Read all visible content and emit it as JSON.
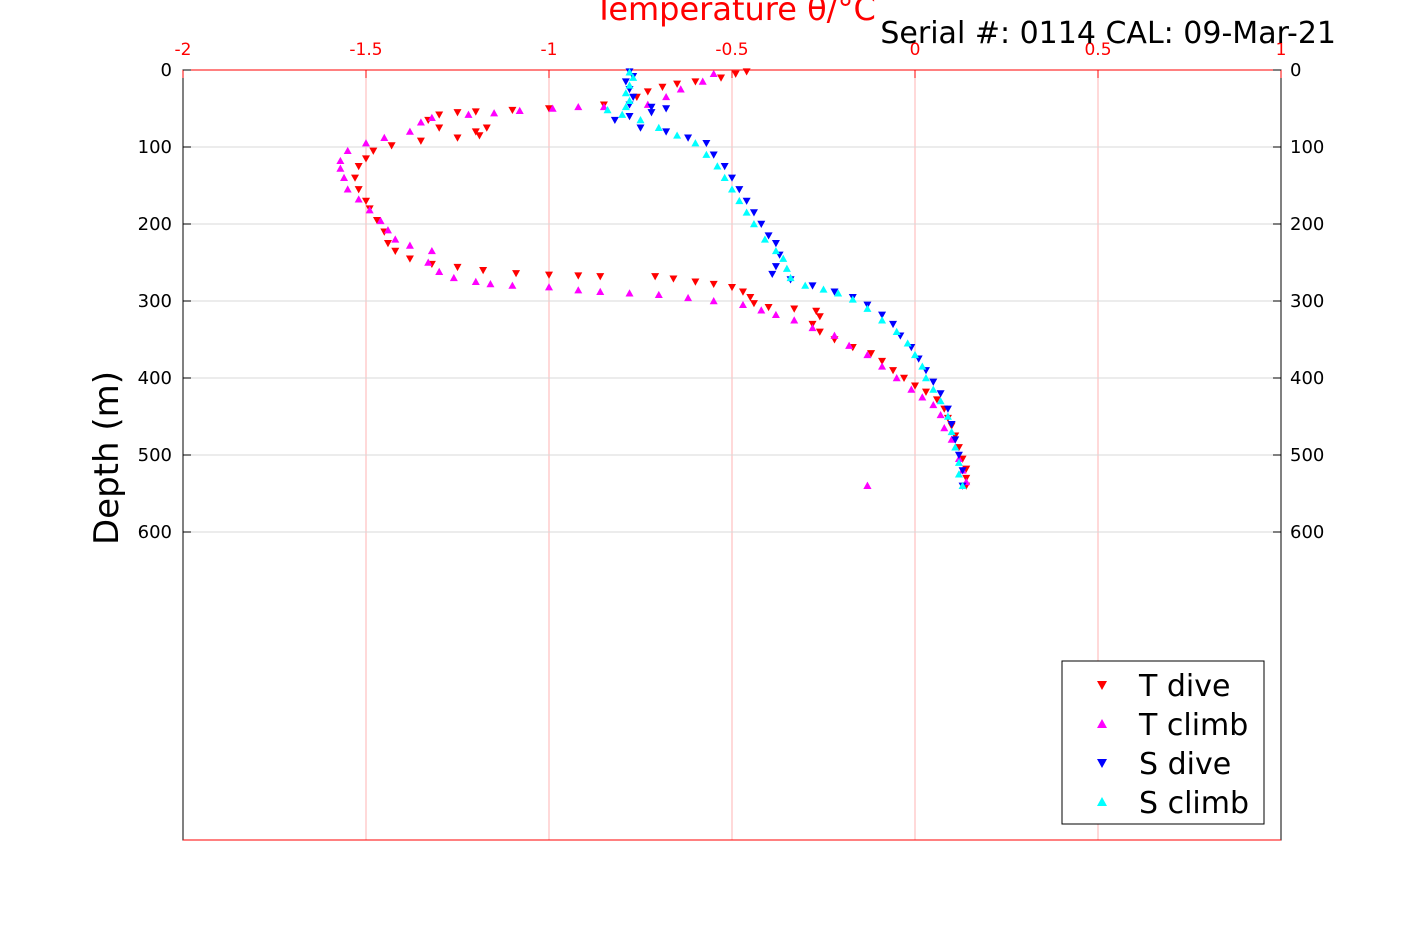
{
  "header": {
    "serial_text": "Serial #: 0114  CAL: 09-Mar-21"
  },
  "colors": {
    "axis_top": "#ff0000",
    "grid_vertical": "#ffb3b3",
    "grid_horizontal": "#d9d9d9",
    "t_dive": "#ff0000",
    "t_climb": "#ff00ff",
    "s_dive": "#0000ff",
    "s_climb": "#00ffff"
  },
  "chart_data": {
    "type": "scatter",
    "title": "",
    "xlabel": "Temperature θ/°C",
    "ylabel": "Depth (m)",
    "xlim": [
      -2,
      1
    ],
    "ylim": [
      0,
      1000
    ],
    "y_reversed": true,
    "x_axis_position": "top",
    "x_ticks": [
      -2,
      -1.5,
      -1,
      -0.5,
      0,
      0.5,
      1
    ],
    "x_tick_labels": [
      "-2",
      "-1.5",
      "-1",
      "-0.5",
      "0",
      "0.5",
      "1"
    ],
    "y_ticks": [
      0,
      100,
      200,
      300,
      400,
      500,
      600
    ],
    "y_tick_labels": [
      "0",
      "100",
      "200",
      "300",
      "400",
      "500",
      "600"
    ],
    "grid": true,
    "legend_position": "bottom-right",
    "series": [
      {
        "name": "T dive",
        "marker": "triangle-down",
        "color": "#ff0000",
        "points": [
          [
            -0.46,
            2
          ],
          [
            -0.49,
            5
          ],
          [
            -0.53,
            10
          ],
          [
            -0.6,
            15
          ],
          [
            -0.65,
            18
          ],
          [
            -0.69,
            22
          ],
          [
            -0.73,
            28
          ],
          [
            -0.76,
            35
          ],
          [
            -0.85,
            45
          ],
          [
            -1.0,
            50
          ],
          [
            -1.1,
            52
          ],
          [
            -1.2,
            54
          ],
          [
            -1.25,
            55
          ],
          [
            -1.3,
            58
          ],
          [
            -1.33,
            65
          ],
          [
            -1.3,
            75
          ],
          [
            -1.2,
            80
          ],
          [
            -1.17,
            75
          ],
          [
            -1.19,
            85
          ],
          [
            -1.25,
            88
          ],
          [
            -1.35,
            92
          ],
          [
            -1.43,
            98
          ],
          [
            -1.48,
            105
          ],
          [
            -1.5,
            115
          ],
          [
            -1.52,
            125
          ],
          [
            -1.53,
            140
          ],
          [
            -1.52,
            155
          ],
          [
            -1.5,
            170
          ],
          [
            -1.49,
            180
          ],
          [
            -1.47,
            195
          ],
          [
            -1.45,
            210
          ],
          [
            -1.44,
            225
          ],
          [
            -1.42,
            235
          ],
          [
            -1.38,
            245
          ],
          [
            -1.32,
            252
          ],
          [
            -1.25,
            256
          ],
          [
            -1.18,
            260
          ],
          [
            -1.09,
            264
          ],
          [
            -1.0,
            266
          ],
          [
            -0.92,
            267
          ],
          [
            -0.86,
            268
          ],
          [
            -0.71,
            268
          ],
          [
            -0.66,
            271
          ],
          [
            -0.6,
            275
          ],
          [
            -0.55,
            278
          ],
          [
            -0.5,
            282
          ],
          [
            -0.47,
            288
          ],
          [
            -0.45,
            295
          ],
          [
            -0.44,
            303
          ],
          [
            -0.4,
            308
          ],
          [
            -0.33,
            310
          ],
          [
            -0.27,
            313
          ],
          [
            -0.26,
            320
          ],
          [
            -0.28,
            330
          ],
          [
            -0.26,
            340
          ],
          [
            -0.22,
            350
          ],
          [
            -0.17,
            360
          ],
          [
            -0.12,
            368
          ],
          [
            -0.09,
            378
          ],
          [
            -0.06,
            390
          ],
          [
            -0.03,
            400
          ],
          [
            0.0,
            410
          ],
          [
            0.03,
            418
          ],
          [
            0.06,
            428
          ],
          [
            0.08,
            440
          ],
          [
            0.09,
            452
          ],
          [
            0.1,
            462
          ],
          [
            0.11,
            475
          ],
          [
            0.12,
            490
          ],
          [
            0.13,
            505
          ],
          [
            0.14,
            518
          ],
          [
            0.14,
            530
          ],
          [
            0.14,
            540
          ]
        ]
      },
      {
        "name": "T climb",
        "marker": "triangle-up",
        "color": "#ff00ff",
        "points": [
          [
            -0.13,
            540
          ],
          [
            -0.13,
            540
          ],
          [
            0.14,
            535
          ],
          [
            0.13,
            520
          ],
          [
            0.12,
            505
          ],
          [
            0.1,
            480
          ],
          [
            0.08,
            465
          ],
          [
            0.07,
            448
          ],
          [
            0.05,
            435
          ],
          [
            0.02,
            425
          ],
          [
            -0.01,
            415
          ],
          [
            -0.05,
            400
          ],
          [
            -0.09,
            385
          ],
          [
            -0.13,
            370
          ],
          [
            -0.18,
            358
          ],
          [
            -0.22,
            345
          ],
          [
            -0.28,
            335
          ],
          [
            -0.33,
            325
          ],
          [
            -0.38,
            318
          ],
          [
            -0.42,
            312
          ],
          [
            -0.47,
            305
          ],
          [
            -0.55,
            300
          ],
          [
            -0.62,
            296
          ],
          [
            -0.7,
            292
          ],
          [
            -0.78,
            290
          ],
          [
            -0.86,
            288
          ],
          [
            -0.92,
            286
          ],
          [
            -1.0,
            282
          ],
          [
            -1.1,
            280
          ],
          [
            -1.16,
            278
          ],
          [
            -1.2,
            275
          ],
          [
            -1.26,
            270
          ],
          [
            -1.3,
            262
          ],
          [
            -1.33,
            250
          ],
          [
            -1.32,
            235
          ],
          [
            -1.38,
            228
          ],
          [
            -1.42,
            220
          ],
          [
            -1.44,
            208
          ],
          [
            -1.46,
            196
          ],
          [
            -1.49,
            182
          ],
          [
            -1.52,
            168
          ],
          [
            -1.55,
            155
          ],
          [
            -1.56,
            140
          ],
          [
            -1.57,
            128
          ],
          [
            -1.57,
            118
          ],
          [
            -1.55,
            105
          ],
          [
            -1.5,
            95
          ],
          [
            -1.45,
            88
          ],
          [
            -1.38,
            80
          ],
          [
            -1.35,
            68
          ],
          [
            -1.32,
            62
          ],
          [
            -1.22,
            58
          ],
          [
            -1.15,
            56
          ],
          [
            -1.08,
            53
          ],
          [
            -0.99,
            50
          ],
          [
            -0.92,
            48
          ],
          [
            -0.85,
            48
          ],
          [
            -0.73,
            45
          ],
          [
            -0.68,
            35
          ],
          [
            -0.64,
            25
          ],
          [
            -0.58,
            15
          ],
          [
            -0.55,
            5
          ]
        ]
      },
      {
        "name": "S dive",
        "marker": "triangle-down",
        "color": "#0000ff",
        "points": [
          [
            -0.78,
            2
          ],
          [
            -0.77,
            8
          ],
          [
            -0.79,
            15
          ],
          [
            -0.78,
            25
          ],
          [
            -0.77,
            35
          ],
          [
            -0.78,
            45
          ],
          [
            -0.72,
            48
          ],
          [
            -0.68,
            50
          ],
          [
            -0.72,
            55
          ],
          [
            -0.78,
            60
          ],
          [
            -0.82,
            65
          ],
          [
            -0.75,
            75
          ],
          [
            -0.68,
            80
          ],
          [
            -0.62,
            88
          ],
          [
            -0.57,
            95
          ],
          [
            -0.55,
            110
          ],
          [
            -0.52,
            125
          ],
          [
            -0.5,
            140
          ],
          [
            -0.48,
            155
          ],
          [
            -0.46,
            170
          ],
          [
            -0.44,
            185
          ],
          [
            -0.42,
            200
          ],
          [
            -0.4,
            215
          ],
          [
            -0.38,
            225
          ],
          [
            -0.37,
            240
          ],
          [
            -0.38,
            255
          ],
          [
            -0.39,
            265
          ],
          [
            -0.34,
            272
          ],
          [
            -0.28,
            280
          ],
          [
            -0.22,
            288
          ],
          [
            -0.17,
            295
          ],
          [
            -0.13,
            305
          ],
          [
            -0.09,
            318
          ],
          [
            -0.06,
            330
          ],
          [
            -0.04,
            345
          ],
          [
            -0.01,
            360
          ],
          [
            0.01,
            375
          ],
          [
            0.03,
            390
          ],
          [
            0.05,
            405
          ],
          [
            0.07,
            420
          ],
          [
            0.09,
            440
          ],
          [
            0.1,
            460
          ],
          [
            0.11,
            480
          ],
          [
            0.12,
            500
          ],
          [
            0.13,
            520
          ],
          [
            0.13,
            540
          ]
        ]
      },
      {
        "name": "S climb",
        "marker": "triangle-up",
        "color": "#00ffff",
        "points": [
          [
            0.13,
            540
          ],
          [
            0.12,
            525
          ],
          [
            0.12,
            510
          ],
          [
            0.11,
            490
          ],
          [
            0.1,
            470
          ],
          [
            0.09,
            450
          ],
          [
            0.07,
            430
          ],
          [
            0.05,
            415
          ],
          [
            0.03,
            400
          ],
          [
            0.02,
            385
          ],
          [
            0.0,
            370
          ],
          [
            -0.02,
            355
          ],
          [
            -0.05,
            340
          ],
          [
            -0.09,
            325
          ],
          [
            -0.13,
            310
          ],
          [
            -0.17,
            298
          ],
          [
            -0.21,
            290
          ],
          [
            -0.25,
            285
          ],
          [
            -0.3,
            280
          ],
          [
            -0.34,
            270
          ],
          [
            -0.35,
            258
          ],
          [
            -0.36,
            245
          ],
          [
            -0.38,
            235
          ],
          [
            -0.41,
            220
          ],
          [
            -0.44,
            200
          ],
          [
            -0.46,
            185
          ],
          [
            -0.48,
            170
          ],
          [
            -0.5,
            155
          ],
          [
            -0.52,
            140
          ],
          [
            -0.54,
            125
          ],
          [
            -0.57,
            110
          ],
          [
            -0.6,
            95
          ],
          [
            -0.65,
            85
          ],
          [
            -0.7,
            75
          ],
          [
            -0.75,
            65
          ],
          [
            -0.8,
            58
          ],
          [
            -0.84,
            52
          ],
          [
            -0.79,
            48
          ],
          [
            -0.78,
            40
          ],
          [
            -0.79,
            30
          ],
          [
            -0.78,
            20
          ],
          [
            -0.77,
            10
          ],
          [
            -0.78,
            3
          ]
        ]
      }
    ]
  }
}
